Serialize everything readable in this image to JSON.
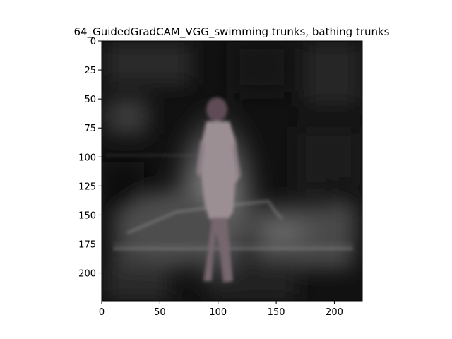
{
  "chart_data": {
    "type": "heatmap",
    "title": "64_GuidedGradCAM_VGG_swimming trunks, bathing trunks",
    "xlabel": "",
    "ylabel": "",
    "xlim": [
      0,
      224
    ],
    "ylim": [
      224,
      0
    ],
    "x_ticks": [
      0,
      50,
      100,
      150,
      200
    ],
    "y_ticks": [
      0,
      25,
      50,
      75,
      100,
      125,
      150,
      175,
      200
    ],
    "x_tick_labels": [
      "0",
      "50",
      "100",
      "150",
      "200"
    ],
    "y_tick_labels": [
      "0",
      "25",
      "50",
      "75",
      "100",
      "125",
      "150",
      "175",
      "200"
    ],
    "grid": false,
    "colormap": "grayscale",
    "colors": {
      "background_dark": "#0d0d0d",
      "highlight": "#8a8a8a",
      "figure_tint": "#6e6066"
    }
  }
}
